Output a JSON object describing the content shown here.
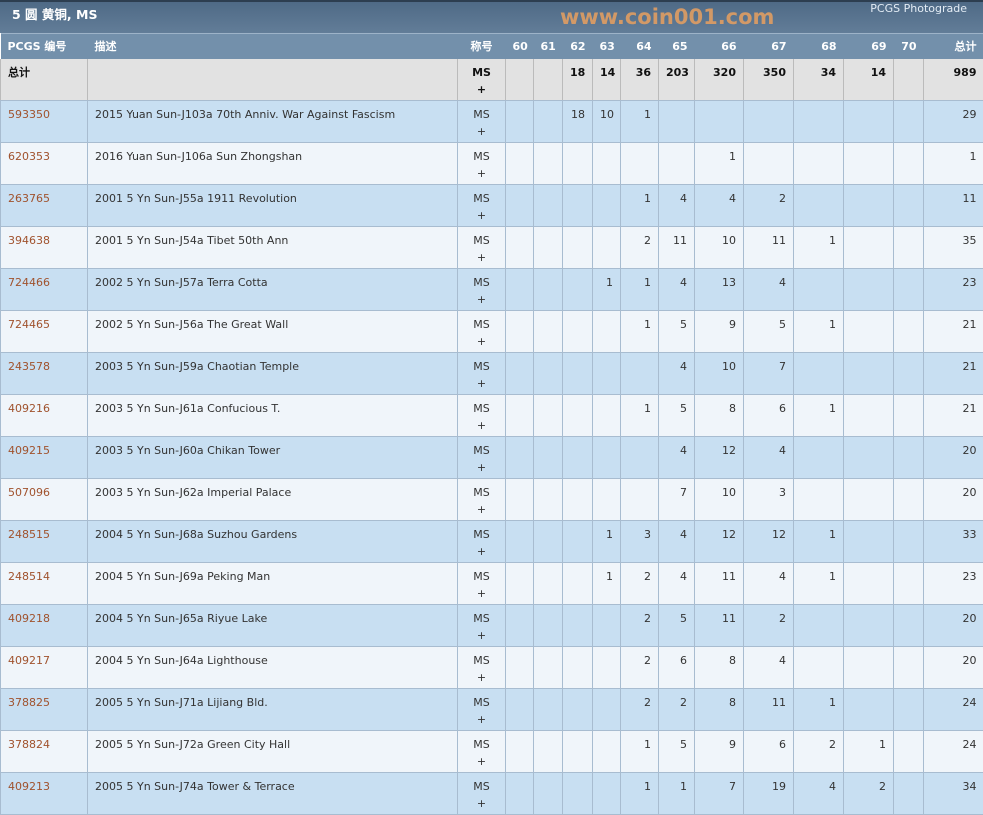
{
  "header": {
    "title": "5 圆 黄铜, MS",
    "brand": "PCGS Photograde"
  },
  "columns": [
    "PCGS 编号",
    "描述",
    "称号",
    "60",
    "61",
    "62",
    "63",
    "64",
    "65",
    "66",
    "67",
    "68",
    "69",
    "70",
    "总计"
  ],
  "total": {
    "label": "总计",
    "designation": "MS +",
    "grades": [
      "",
      "",
      "18",
      "14",
      "36",
      "203",
      "320",
      "350",
      "34",
      "14",
      ""
    ],
    "total": "989"
  },
  "rows": [
    {
      "id": "593350",
      "desc": "2015 Yuan Sun-J103a 70th Anniv. War Against Fascism",
      "des": "MS +",
      "grades": [
        "",
        "",
        "18",
        "10",
        "1",
        "",
        "",
        "",
        "",
        "",
        ""
      ],
      "total": "29"
    },
    {
      "id": "620353",
      "desc": "2016 Yuan Sun-J106a Sun Zhongshan",
      "des": "MS +",
      "grades": [
        "",
        "",
        "",
        "",
        "",
        "",
        "1",
        "",
        "",
        "",
        ""
      ],
      "total": "1"
    },
    {
      "id": "263765",
      "desc": "2001 5 Yn Sun-J55a 1911 Revolution",
      "des": "MS +",
      "grades": [
        "",
        "",
        "",
        "",
        "1",
        "4",
        "4",
        "2",
        "",
        "",
        ""
      ],
      "total": "11"
    },
    {
      "id": "394638",
      "desc": "2001 5 Yn Sun-J54a Tibet 50th Ann",
      "des": "MS +",
      "grades": [
        "",
        "",
        "",
        "",
        "2",
        "11",
        "10",
        "11",
        "1",
        "",
        ""
      ],
      "total": "35"
    },
    {
      "id": "724466",
      "desc": "2002 5 Yn Sun-J57a Terra Cotta",
      "des": "MS +",
      "grades": [
        "",
        "",
        "",
        "1",
        "1",
        "4",
        "13",
        "4",
        "",
        "",
        ""
      ],
      "total": "23"
    },
    {
      "id": "724465",
      "desc": "2002 5 Yn Sun-J56a The Great Wall",
      "des": "MS +",
      "grades": [
        "",
        "",
        "",
        "",
        "1",
        "5",
        "9",
        "5",
        "1",
        "",
        ""
      ],
      "total": "21"
    },
    {
      "id": "243578",
      "desc": "2003 5 Yn Sun-J59a Chaotian Temple",
      "des": "MS +",
      "grades": [
        "",
        "",
        "",
        "",
        "",
        "4",
        "10",
        "7",
        "",
        "",
        ""
      ],
      "total": "21"
    },
    {
      "id": "409216",
      "desc": "2003 5 Yn Sun-J61a Confucious T.",
      "des": "MS +",
      "grades": [
        "",
        "",
        "",
        "",
        "1",
        "5",
        "8",
        "6",
        "1",
        "",
        ""
      ],
      "total": "21"
    },
    {
      "id": "409215",
      "desc": "2003 5 Yn Sun-J60a Chikan Tower",
      "des": "MS +",
      "grades": [
        "",
        "",
        "",
        "",
        "",
        "4",
        "12",
        "4",
        "",
        "",
        ""
      ],
      "total": "20"
    },
    {
      "id": "507096",
      "desc": "2003 5 Yn Sun-J62a Imperial Palace",
      "des": "MS +",
      "grades": [
        "",
        "",
        "",
        "",
        "",
        "7",
        "10",
        "3",
        "",
        "",
        ""
      ],
      "total": "20"
    },
    {
      "id": "248515",
      "desc": "2004 5 Yn Sun-J68a Suzhou Gardens",
      "des": "MS +",
      "grades": [
        "",
        "",
        "",
        "1",
        "3",
        "4",
        "12",
        "12",
        "1",
        "",
        ""
      ],
      "total": "33"
    },
    {
      "id": "248514",
      "desc": "2004 5 Yn Sun-J69a Peking Man",
      "des": "MS +",
      "grades": [
        "",
        "",
        "",
        "1",
        "2",
        "4",
        "11",
        "4",
        "1",
        "",
        ""
      ],
      "total": "23"
    },
    {
      "id": "409218",
      "desc": "2004 5 Yn Sun-J65a Riyue Lake",
      "des": "MS +",
      "grades": [
        "",
        "",
        "",
        "",
        "2",
        "5",
        "11",
        "2",
        "",
        "",
        ""
      ],
      "total": "20"
    },
    {
      "id": "409217",
      "desc": "2004 5 Yn Sun-J64a Lighthouse",
      "des": "MS +",
      "grades": [
        "",
        "",
        "",
        "",
        "2",
        "6",
        "8",
        "4",
        "",
        "",
        ""
      ],
      "total": "20"
    },
    {
      "id": "378825",
      "desc": "2005 5 Yn Sun-J71a Lijiang Bld.",
      "des": "MS +",
      "grades": [
        "",
        "",
        "",
        "",
        "2",
        "2",
        "8",
        "11",
        "1",
        "",
        ""
      ],
      "total": "24"
    },
    {
      "id": "378824",
      "desc": "2005 5 Yn Sun-J72a Green City Hall",
      "des": "MS +",
      "grades": [
        "",
        "",
        "",
        "",
        "1",
        "5",
        "9",
        "6",
        "2",
        "1",
        ""
      ],
      "total": "24"
    },
    {
      "id": "409213",
      "desc": "2005 5 Yn Sun-J74a Tower & Terrace",
      "des": "MS +",
      "grades": [
        "",
        "",
        "",
        "",
        "1",
        "1",
        "7",
        "19",
        "4",
        "2",
        ""
      ],
      "total": "34"
    }
  ],
  "watermark": "www.coin001.com"
}
